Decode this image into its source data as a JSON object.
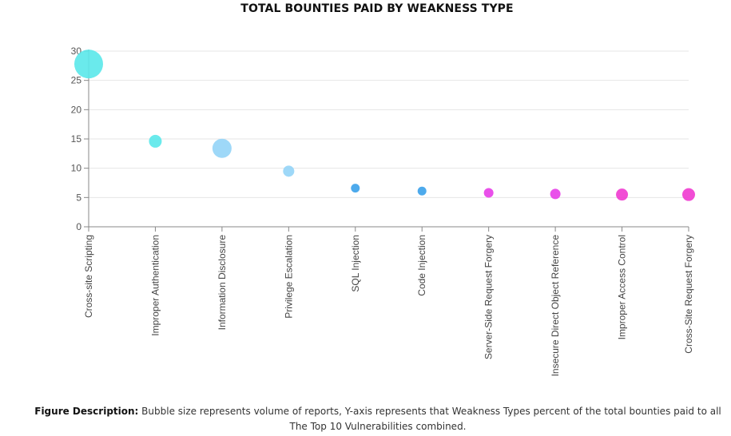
{
  "chart_data": {
    "type": "scatter",
    "title": "TOTAL BOUNTIES PAID BY WEAKNESS TYPE",
    "xlabel": "",
    "ylabel": "",
    "ylim": [
      0,
      30
    ],
    "yticks": [
      0,
      5,
      10,
      15,
      20,
      25,
      30
    ],
    "grid": true,
    "legend": "none",
    "categories": [
      "Cross-site Scripting",
      "Improper Authentication",
      "Information Disclosure",
      "Privilege Escalation",
      "SQL Injection",
      "Code Injection",
      "Server-Side Request Forgery",
      "Insecure Direct Object Reference",
      "Improper Access Control",
      "Cross-Site Request Forgery"
    ],
    "values": [
      27.8,
      14.6,
      13.4,
      9.5,
      6.6,
      6.1,
      5.8,
      5.6,
      5.5,
      5.5
    ],
    "bubble_sizes": [
      18,
      8,
      12,
      7,
      5.5,
      5.5,
      6,
      6.5,
      7.5,
      8
    ],
    "colors": [
      "#5ae8ea",
      "#5ae8ea",
      "#93d4f7",
      "#93d4f7",
      "#3aa1ea",
      "#3aa1ea",
      "#e73de8",
      "#e73de8",
      "#f03ad0",
      "#f03ad0"
    ]
  },
  "description": {
    "label": "Figure Description:",
    "text": " Bubble size represents volume of reports, Y-axis represents that Weakness Types percent of the total bounties paid to all The Top 10 Vulnerabilities combined."
  }
}
